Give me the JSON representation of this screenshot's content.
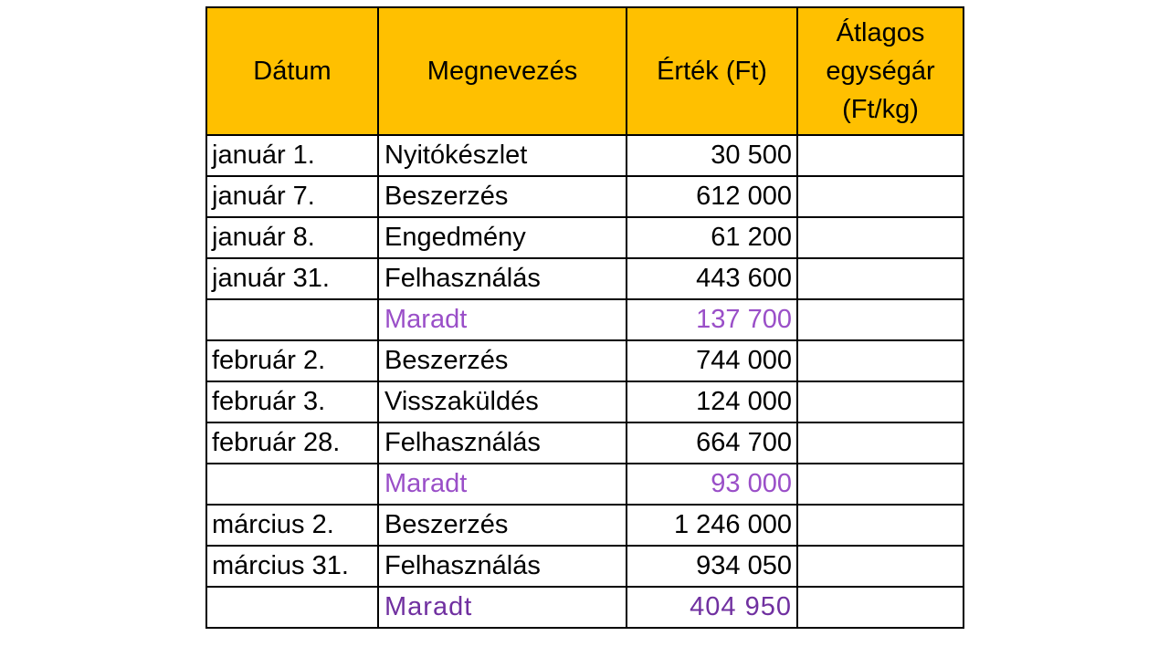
{
  "table": {
    "header": {
      "date": "Dátum",
      "name": "Megnevezés",
      "value": "Érték (Ft)",
      "avg_price_lines": [
        "Átlagos",
        "egységár",
        "(Ft/kg)"
      ]
    },
    "rows": [
      {
        "date": "január 1.",
        "name": "Nyitókészlet",
        "value": "30 500",
        "avg": ""
      },
      {
        "date": "január 7.",
        "name": "Beszerzés",
        "value": "612 000",
        "avg": ""
      },
      {
        "date": "január 8.",
        "name": "Engedmény",
        "value": "61 200",
        "avg": ""
      },
      {
        "date": "január 31.",
        "name": "Felhasználás",
        "value": "443 600",
        "avg": ""
      },
      {
        "date": "",
        "name": "Maradt",
        "value": "137 700",
        "avg": ""
      },
      {
        "date": "február 2.",
        "name": "Beszerzés",
        "value": "744 000",
        "avg": ""
      },
      {
        "date": "február 3.",
        "name": "Visszaküldés",
        "value": "124 000",
        "avg": ""
      },
      {
        "date": "február 28.",
        "name": "Felhasználás",
        "value": "664 700",
        "avg": ""
      },
      {
        "date": "",
        "name": "Maradt",
        "value": "93 000",
        "avg": ""
      },
      {
        "date": "március 2.",
        "name": "Beszerzés",
        "value": "1 246 000",
        "avg": ""
      },
      {
        "date": "március 31.",
        "name": "Felhasználás",
        "value": "934 050",
        "avg": ""
      },
      {
        "date": "",
        "name": "Maradt",
        "value": "404 950",
        "avg": ""
      }
    ]
  },
  "colors": {
    "header_fill": "#ffc000",
    "remaining_text": "#9a4fc8",
    "final_remaining_text": "#7030a0",
    "border": "#000000"
  }
}
